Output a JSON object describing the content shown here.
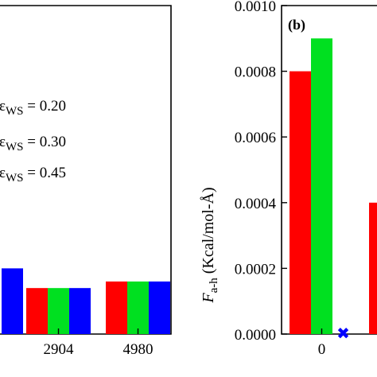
{
  "chart_data": [
    {
      "type": "bar",
      "panel_label": "",
      "categories": [
        "",
        "2904",
        "4980"
      ],
      "series": [
        {
          "name": "εWS = 0.20",
          "color": "#ff0000",
          "values": [
            null,
            0.00014,
            0.00016
          ]
        },
        {
          "name": "εWS = 0.30",
          "color": "#00e020",
          "values": [
            null,
            0.00014,
            0.00016
          ]
        },
        {
          "name": "εWS = 0.45",
          "color": "#0000ff",
          "values": [
            0.0002,
            0.00014,
            0.00016
          ]
        }
      ],
      "legend": [
        {
          "prefix": "ε",
          "sub": "WS",
          "value": " = 0.20",
          "color": "#ff0000"
        },
        {
          "prefix": "ε",
          "sub": "WS",
          "value": " = 0.30",
          "color": "#00e020"
        },
        {
          "prefix": "ε",
          "sub": "WS",
          "value": " = 0.45",
          "color": "#0000ff"
        }
      ],
      "legend_placement": "upper-left",
      "ylim": [
        0,
        0.001
      ],
      "grid": false
    },
    {
      "type": "bar",
      "panel_label": "(b)",
      "categories": [
        "0",
        ""
      ],
      "series": [
        {
          "name": "εWS = 0.20",
          "color": "#ff0000",
          "values": [
            0.0008,
            0.0004
          ]
        },
        {
          "name": "εWS = 0.30",
          "color": "#00e020",
          "values": [
            0.0009,
            null
          ]
        },
        {
          "name": "εWS = 0.45",
          "color": "#0000ff",
          "values": [
            0,
            null
          ]
        }
      ],
      "zero_marker": {
        "symbol": "✖",
        "color": "#0000ff"
      },
      "ylabel": {
        "main": "F",
        "sub": "a-h",
        "rest": " (Kcal/mol-Å)"
      },
      "ylim": [
        0,
        0.001
      ],
      "yticks": [
        "0.0000",
        "0.0002",
        "0.0004",
        "0.0006",
        "0.0008",
        "0.0010"
      ],
      "ytick_values": [
        0,
        0.0002,
        0.0004,
        0.0006,
        0.0008,
        0.001
      ],
      "grid": false
    }
  ]
}
